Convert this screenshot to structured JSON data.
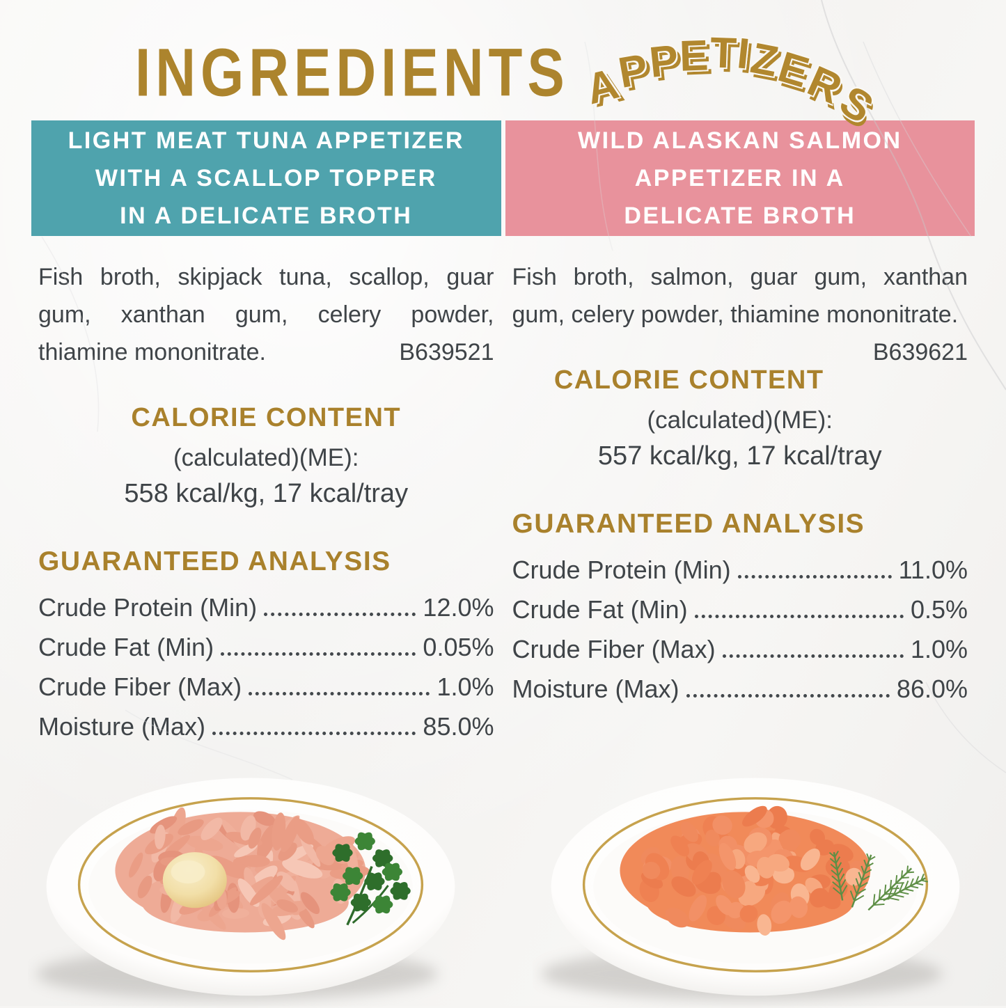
{
  "title": {
    "main": "INGREDIENTS",
    "arc": "APPETIZERS"
  },
  "colors": {
    "gold": "#ac842d",
    "teal": "#4fa3ad",
    "pink": "#e8929c",
    "text": "#3f4448",
    "plate_ring_gold": "#c6a24d",
    "tuna_meat": "#eda68f",
    "salmon_meat": "#f4956b"
  },
  "products": [
    {
      "id": "tuna",
      "header_lines": [
        "LIGHT MEAT TUNA APPETIZER",
        "WITH A SCALLOP TOPPER",
        "IN A DELICATE BROTH"
      ],
      "ingredients": "Fish broth, skipjack tuna, scallop, guar gum, xanthan gum, celery powder, thiamine mononitrate.",
      "batch_code": "B639521",
      "calories": {
        "heading": "CALORIE CONTENT",
        "method": "(calculated)(ME):",
        "value": "558 kcal/kg, 17 kcal/tray"
      },
      "analysis_heading": "GUARANTEED ANALYSIS",
      "analysis": [
        {
          "label": "Crude Protein (Min)",
          "value": "12.0%"
        },
        {
          "label": "Crude Fat (Min)",
          "value": "0.05%"
        },
        {
          "label": "Crude Fiber (Max)",
          "value": "1.0%"
        },
        {
          "label": "Moisture (Max)",
          "value": "85.0%"
        }
      ]
    },
    {
      "id": "salmon",
      "header_lines": [
        "WILD ALASKAN SALMON",
        "APPETIZER IN A",
        "DELICATE BROTH"
      ],
      "ingredients": "Fish broth, salmon, guar gum, xanthan gum, celery powder, thiamine mononitrate.",
      "batch_code": "B639621",
      "calories": {
        "heading": "CALORIE CONTENT",
        "method": "(calculated)(ME):",
        "value": "557 kcal/kg, 17 kcal/tray"
      },
      "analysis_heading": "GUARANTEED ANALYSIS",
      "analysis": [
        {
          "label": "Crude Protein (Min)",
          "value": "11.0%"
        },
        {
          "label": "Crude Fat (Min)",
          "value": "0.5%"
        },
        {
          "label": "Crude Fiber (Max)",
          "value": "1.0%"
        },
        {
          "label": "Moisture (Max)",
          "value": "86.0%"
        }
      ]
    }
  ]
}
